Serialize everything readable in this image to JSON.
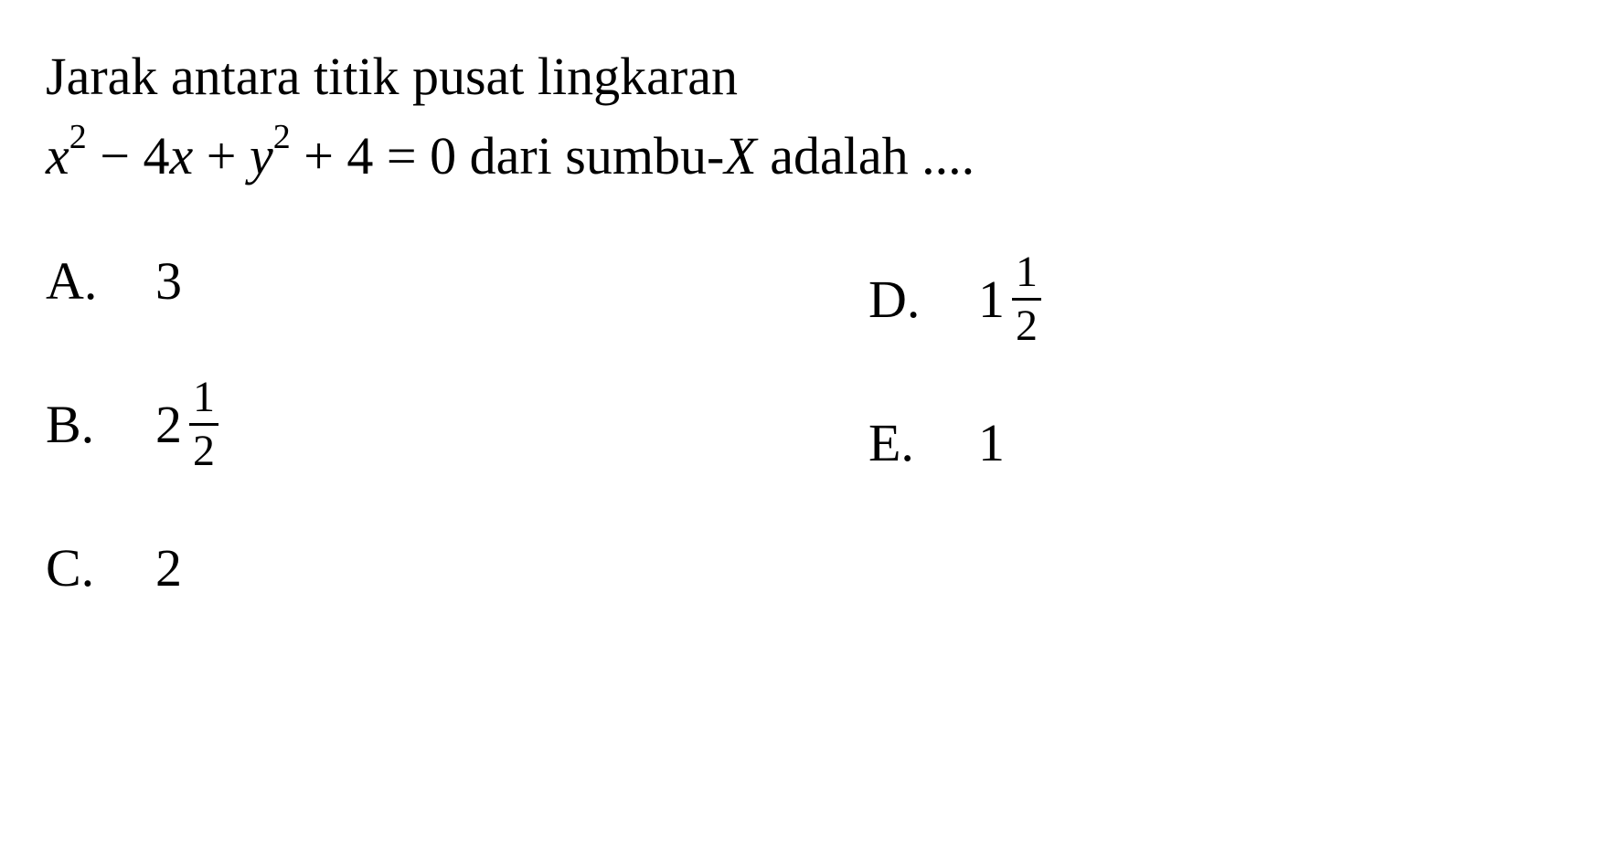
{
  "question": {
    "line1": "Jarak antara titik pusat lingkaran",
    "equation_prefix": "",
    "x_var": "x",
    "x_exp": "2",
    "minus_4x": " − 4",
    "x_var2": "x",
    "plus": " + ",
    "y_var": "y",
    "y_exp": "2",
    "plus_4": " + 4 = 0 dari sumbu-",
    "x_axis": "X",
    "tail": " adalah ...."
  },
  "options": {
    "a": {
      "label": "A.",
      "value": "3"
    },
    "b": {
      "label": "B.",
      "whole": "2",
      "num": "1",
      "den": "2"
    },
    "c": {
      "label": "C.",
      "value": "2"
    },
    "d": {
      "label": "D.",
      "whole": "1",
      "num": "1",
      "den": "2"
    },
    "e": {
      "label": "E.",
      "value": "1"
    }
  },
  "colors": {
    "background": "#ffffff",
    "text": "#000000"
  },
  "typography": {
    "font_family": "Georgia, Times New Roman, serif",
    "body_fontsize": 58,
    "fraction_fontsize": 48,
    "superscript_fontsize": 38
  }
}
